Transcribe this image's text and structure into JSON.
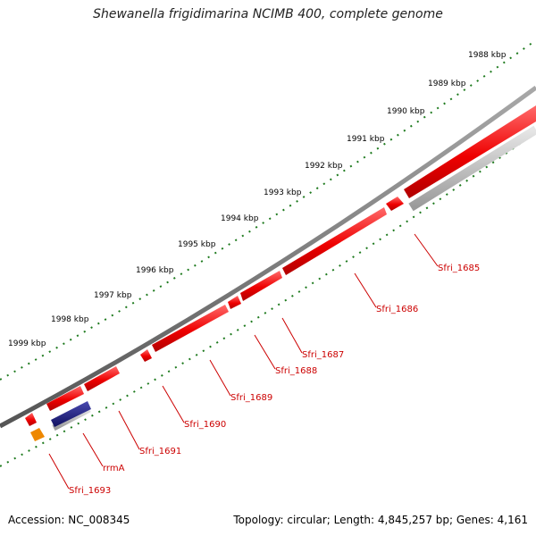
{
  "title": "Shewanella frigidimarina NCIMB 400, complete genome",
  "footer": {
    "accession": "Accession: NC_008345",
    "summary": "Topology: circular; Length: 4,845,257 bp; Genes: 4,161"
  },
  "colors": {
    "forward_gene": "#ee0000",
    "reverse_gene": "#ff0000",
    "rrna": "#1a1a80",
    "orange_feature": "#ee8800",
    "backbone": "#808080",
    "gc_track": "#bdbdbd",
    "tick": "#1e7a1e",
    "label": "#cc0000"
  },
  "scale_labels": [
    "1988 kbp",
    "1989 kbp",
    "1990 kbp",
    "1991 kbp",
    "1992 kbp",
    "1993 kbp",
    "1994 kbp",
    "1995 kbp",
    "1996 kbp",
    "1997 kbp",
    "1998 kbp",
    "1999 kbp"
  ],
  "gene_labels": [
    "Sfri_1685",
    "Sfri_1686",
    "Sfri_1687",
    "Sfri_1688",
    "Sfri_1689",
    "Sfri_1690",
    "Sfri_1691",
    "rrmA",
    "Sfri_1693"
  ]
}
